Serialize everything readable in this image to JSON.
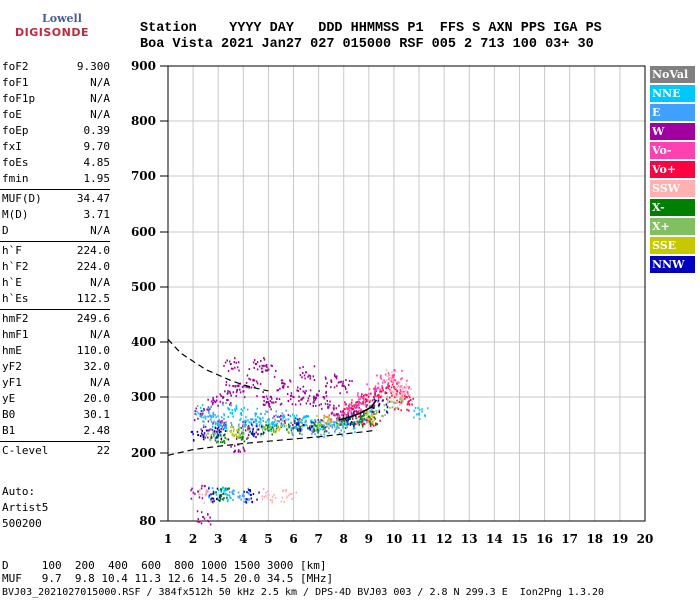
{
  "logo": {
    "line1": "Lowell",
    "line2": "DIGISONDE"
  },
  "header": {
    "row1": "Station    YYYY DAY   DDD HHMMSS P1  FFS S AXN PPS IGA PS",
    "row2": "Boa Vista 2021 Jan27 027 015000 RSF 005 2 713 100 03+ 30"
  },
  "params": [
    {
      "k": "foF2",
      "v": "9.300"
    },
    {
      "k": "foF1",
      "v": "N/A"
    },
    {
      "k": "foF1p",
      "v": "N/A"
    },
    {
      "k": "foE",
      "v": "N/A"
    },
    {
      "k": "foEp",
      "v": "0.39"
    },
    {
      "k": "fxI",
      "v": "9.70"
    },
    {
      "k": "foEs",
      "v": "4.85"
    },
    {
      "k": "fmin",
      "v": "1.95"
    },
    {
      "k": "MUF(D)",
      "v": "34.47"
    },
    {
      "k": "M(D)",
      "v": "3.71"
    },
    {
      "k": "D",
      "v": "N/A"
    },
    {
      "k": "h`F",
      "v": "224.0"
    },
    {
      "k": "h`F2",
      "v": "224.0"
    },
    {
      "k": "h`E",
      "v": "N/A"
    },
    {
      "k": "h`Es",
      "v": "112.5"
    },
    {
      "k": "hmF2",
      "v": "249.6"
    },
    {
      "k": "hmF1",
      "v": "N/A"
    },
    {
      "k": "hmE",
      "v": "110.0"
    },
    {
      "k": "yF2",
      "v": "32.0"
    },
    {
      "k": "yF1",
      "v": "N/A"
    },
    {
      "k": "yE",
      "v": "20.0"
    },
    {
      "k": "B0",
      "v": "30.1"
    },
    {
      "k": "B1",
      "v": "2.48"
    },
    {
      "k": "C-level",
      "v": "22"
    }
  ],
  "auto": {
    "line1": "Auto:",
    "line2": "Artist5",
    "line3": "500200"
  },
  "legend": [
    {
      "label": "NoVal",
      "bg": "#808080",
      "fg": "#ffffff"
    },
    {
      "label": "NNE",
      "bg": "#00c8ff",
      "fg": "#ffffff"
    },
    {
      "label": "E",
      "bg": "#40a0ff",
      "fg": "#ffffff"
    },
    {
      "label": "W",
      "bg": "#a000a0",
      "fg": "#ffffff"
    },
    {
      "label": "Vo-",
      "bg": "#ff40b0",
      "fg": "#ffffff"
    },
    {
      "label": "Vo+",
      "bg": "#ff0040",
      "fg": "#ffffff"
    },
    {
      "label": "SSW",
      "bg": "#ffb0b0",
      "fg": "#ffffff"
    },
    {
      "label": "X-",
      "bg": "#008000",
      "fg": "#ffffff"
    },
    {
      "label": "X+",
      "bg": "#80c060",
      "fg": "#ffffff"
    },
    {
      "label": "SSE",
      "bg": "#c8c800",
      "fg": "#ffffff"
    },
    {
      "label": "NNW",
      "bg": "#0000c0",
      "fg": "#ffffff"
    }
  ],
  "footer": {
    "row1": "D     100  200  400  600  800 1000 1500 3000 [km]",
    "row2": "MUF   9.7  9.8 10.4 11.3 12.6 14.5 20.0 34.5 [MHz]",
    "row3": "BVJ03_2021027015000.RSF / 384fx512h 50 kHz 2.5 km / DPS-4D BVJ03 003 / 2.8 N 299.3 E  Ion2Png 1.3.20"
  },
  "chart_data": {
    "type": "scatter",
    "title": "",
    "xlabel": "",
    "ylabel": "",
    "xlim": [
      1,
      20
    ],
    "ylim": [
      80,
      900
    ],
    "x_ticks": [
      1,
      2,
      3,
      4,
      5,
      6,
      7,
      8,
      9,
      10,
      11,
      12,
      13,
      14,
      15,
      16,
      17,
      18,
      19,
      20
    ],
    "y_ticks": [
      80,
      200,
      300,
      400,
      500,
      600,
      700,
      800,
      900
    ],
    "grid": true,
    "series": [
      {
        "name": "W",
        "color": "#a000a0",
        "points": [
          [
            2.3,
            270
          ],
          [
            2.8,
            290
          ],
          [
            3.2,
            300
          ],
          [
            3.6,
            320
          ],
          [
            4.0,
            310
          ],
          [
            4.4,
            330
          ],
          [
            4.8,
            300
          ],
          [
            5.2,
            290
          ],
          [
            5.6,
            320
          ],
          [
            6.0,
            300
          ],
          [
            6.4,
            310
          ],
          [
            6.8,
            290
          ],
          [
            7.2,
            300
          ],
          [
            7.6,
            280
          ],
          [
            8.0,
            270
          ],
          [
            8.4,
            270
          ],
          [
            8.8,
            275
          ],
          [
            3.5,
            360
          ],
          [
            4.5,
            360
          ],
          [
            5.0,
            350
          ],
          [
            6.5,
            345
          ],
          [
            7.5,
            330
          ],
          [
            8.0,
            320
          ],
          [
            2.6,
            240
          ],
          [
            3.0,
            250
          ],
          [
            4.2,
            245
          ],
          [
            5.5,
            260
          ],
          [
            6.2,
            255
          ],
          [
            7.0,
            250
          ],
          [
            3.8,
            215
          ],
          [
            2.2,
            132
          ],
          [
            2.4,
            87
          ]
        ]
      },
      {
        "name": "NNE",
        "color": "#00c8ff",
        "points": [
          [
            2.4,
            275
          ],
          [
            2.7,
            260
          ],
          [
            3.0,
            240
          ],
          [
            3.4,
            280
          ],
          [
            3.9,
            270
          ],
          [
            4.3,
            260
          ],
          [
            4.9,
            255
          ],
          [
            5.3,
            250
          ],
          [
            5.8,
            260
          ],
          [
            6.3,
            255
          ],
          [
            6.7,
            255
          ],
          [
            7.1,
            250
          ],
          [
            7.6,
            250
          ],
          [
            8.1,
            250
          ],
          [
            8.6,
            255
          ],
          [
            9.0,
            265
          ],
          [
            11.0,
            270
          ],
          [
            2.9,
            130
          ],
          [
            3.3,
            128
          ]
        ]
      },
      {
        "name": "E",
        "color": "#40a0ff",
        "points": [
          [
            2.6,
            265
          ],
          [
            3.3,
            255
          ],
          [
            4.1,
            250
          ],
          [
            4.7,
            270
          ],
          [
            5.4,
            265
          ],
          [
            6.1,
            245
          ],
          [
            6.9,
            240
          ],
          [
            7.8,
            245
          ],
          [
            3.6,
            128
          ],
          [
            4.0,
            127
          ]
        ]
      },
      {
        "name": "Vo+",
        "color": "#ff0040",
        "points": [
          [
            8.3,
            280
          ],
          [
            8.6,
            290
          ],
          [
            8.9,
            295
          ],
          [
            9.2,
            300
          ],
          [
            9.5,
            310
          ],
          [
            9.8,
            320
          ],
          [
            10.1,
            305
          ],
          [
            10.3,
            290
          ],
          [
            10.5,
            300
          ],
          [
            9.1,
            260
          ],
          [
            8.7,
            265
          ]
        ]
      },
      {
        "name": "Vo-",
        "color": "#ff40b0",
        "points": [
          [
            8.0,
            270
          ],
          [
            8.4,
            285
          ],
          [
            8.8,
            300
          ],
          [
            9.2,
            315
          ],
          [
            9.6,
            330
          ],
          [
            10.0,
            340
          ],
          [
            10.3,
            320
          ],
          [
            7.5,
            260
          ]
        ]
      },
      {
        "name": "SSW",
        "color": "#ffb0b0",
        "points": [
          [
            9.8,
            340
          ],
          [
            10.2,
            320
          ],
          [
            10.5,
            310
          ],
          [
            10.1,
            300
          ],
          [
            2.5,
            125
          ],
          [
            5.0,
            126
          ],
          [
            5.8,
            125
          ]
        ]
      },
      {
        "name": "X-",
        "color": "#008000",
        "points": [
          [
            3.0,
            230
          ],
          [
            4.0,
            235
          ],
          [
            5.0,
            240
          ],
          [
            6.0,
            245
          ],
          [
            7.0,
            250
          ],
          [
            8.0,
            258
          ],
          [
            8.5,
            262
          ],
          [
            9.0,
            265
          ],
          [
            3.2,
            128
          ]
        ]
      },
      {
        "name": "X+",
        "color": "#80c060",
        "points": [
          [
            2.8,
            235
          ],
          [
            3.8,
            240
          ],
          [
            4.8,
            245
          ],
          [
            6.5,
            250
          ],
          [
            7.5,
            255
          ],
          [
            9.3,
            275
          ],
          [
            10.0,
            290
          ]
        ]
      },
      {
        "name": "SSE",
        "color": "#c8c800",
        "points": [
          [
            3.5,
            238
          ],
          [
            5.5,
            248
          ],
          [
            7.2,
            256
          ],
          [
            8.9,
            268
          ]
        ]
      },
      {
        "name": "NNW",
        "color": "#0000c0",
        "points": [
          [
            2.2,
            232
          ],
          [
            3.1,
            238
          ],
          [
            4.6,
            242
          ],
          [
            6.4,
            250
          ],
          [
            8.2,
            262
          ],
          [
            9.4,
            285
          ],
          [
            2.8,
            128
          ],
          [
            4.3,
            126
          ]
        ]
      }
    ],
    "profile_lower": [
      [
        1,
        196
      ],
      [
        2,
        206
      ],
      [
        3,
        212
      ],
      [
        4,
        217
      ],
      [
        5,
        221
      ],
      [
        6,
        225
      ],
      [
        7,
        229
      ],
      [
        8,
        234
      ],
      [
        9,
        239
      ],
      [
        9.3,
        241
      ]
    ],
    "profile_upper": [
      [
        1,
        405
      ],
      [
        1.5,
        380
      ],
      [
        2,
        365
      ],
      [
        2.5,
        350
      ],
      [
        3,
        340
      ],
      [
        3.5,
        330
      ],
      [
        4,
        322
      ],
      [
        4.5,
        316
      ],
      [
        5,
        311
      ]
    ],
    "bottomside": [
      [
        7.8,
        259
      ],
      [
        8.3,
        265
      ],
      [
        8.7,
        272
      ],
      [
        9.1,
        282
      ],
      [
        9.3,
        295
      ]
    ]
  }
}
